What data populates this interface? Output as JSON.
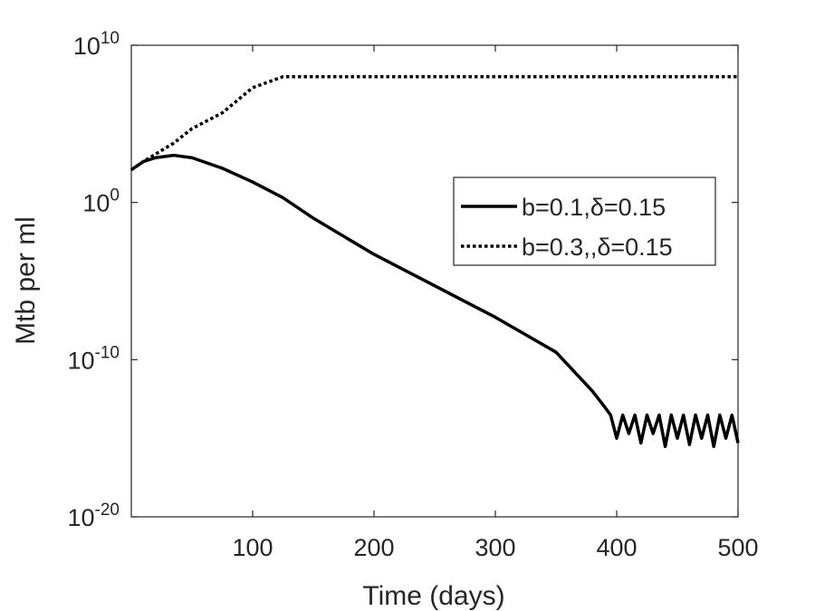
{
  "chart_data": {
    "type": "line",
    "xlabel": "Time (days)",
    "ylabel": "Mtb per ml",
    "log_y": true,
    "xlim": [
      0,
      500
    ],
    "xticks": [
      100,
      200,
      300,
      400,
      500
    ],
    "ylim": [
      1e-20,
      10000000000.0
    ],
    "yticks": [
      {
        "value": 1e-20,
        "label": "10^-20"
      },
      {
        "value": 1e-10,
        "label": "10^-10"
      },
      {
        "value": 1,
        "label": "10^0"
      },
      {
        "value": 10000000000.0,
        "label": "10^10"
      }
    ],
    "legend": "right",
    "x": [
      0,
      10,
      20,
      35,
      50,
      75,
      100,
      125,
      150,
      200,
      250,
      300,
      350,
      380,
      390,
      395,
      400,
      405,
      410,
      415,
      420,
      425,
      430,
      435,
      440,
      445,
      450,
      455,
      460,
      465,
      470,
      475,
      480,
      485,
      490,
      495,
      500
    ],
    "series": [
      {
        "name": "b=0.1,δ=0.15",
        "color": "#000000",
        "style": "solid",
        "values": [
          120,
          400,
          700,
          1000,
          700,
          150,
          20,
          2,
          0.1,
          0.0005,
          5e-06,
          5e-08,
          3e-10,
          1e-12,
          1e-13,
          3e-14,
          1e-15,
          3e-14,
          2e-15,
          3e-14,
          5e-16,
          3e-14,
          2e-15,
          3e-14,
          3e-16,
          3e-14,
          1e-15,
          3e-14,
          4e-16,
          3e-14,
          1e-15,
          3e-14,
          3e-16,
          3e-14,
          1e-15,
          3e-14,
          5e-16
        ]
      },
      {
        "name": "b=0.3,,δ=0.15",
        "color": "#000000",
        "style": "dotted",
        "values": [
          120,
          400,
          1200,
          6000,
          50000,
          500000,
          20000000.0,
          100000000.0,
          100000000.0,
          100000000.0,
          100000000.0,
          100000000.0,
          100000000.0,
          100000000.0,
          100000000.0,
          100000000.0,
          100000000.0,
          100000000.0,
          100000000.0,
          100000000.0,
          100000000.0,
          100000000.0,
          100000000.0,
          100000000.0,
          100000000.0,
          100000000.0,
          100000000.0,
          100000000.0,
          100000000.0,
          100000000.0,
          100000000.0,
          100000000.0,
          100000000.0,
          100000000.0,
          100000000.0,
          100000000.0,
          100000000.0
        ]
      }
    ]
  }
}
